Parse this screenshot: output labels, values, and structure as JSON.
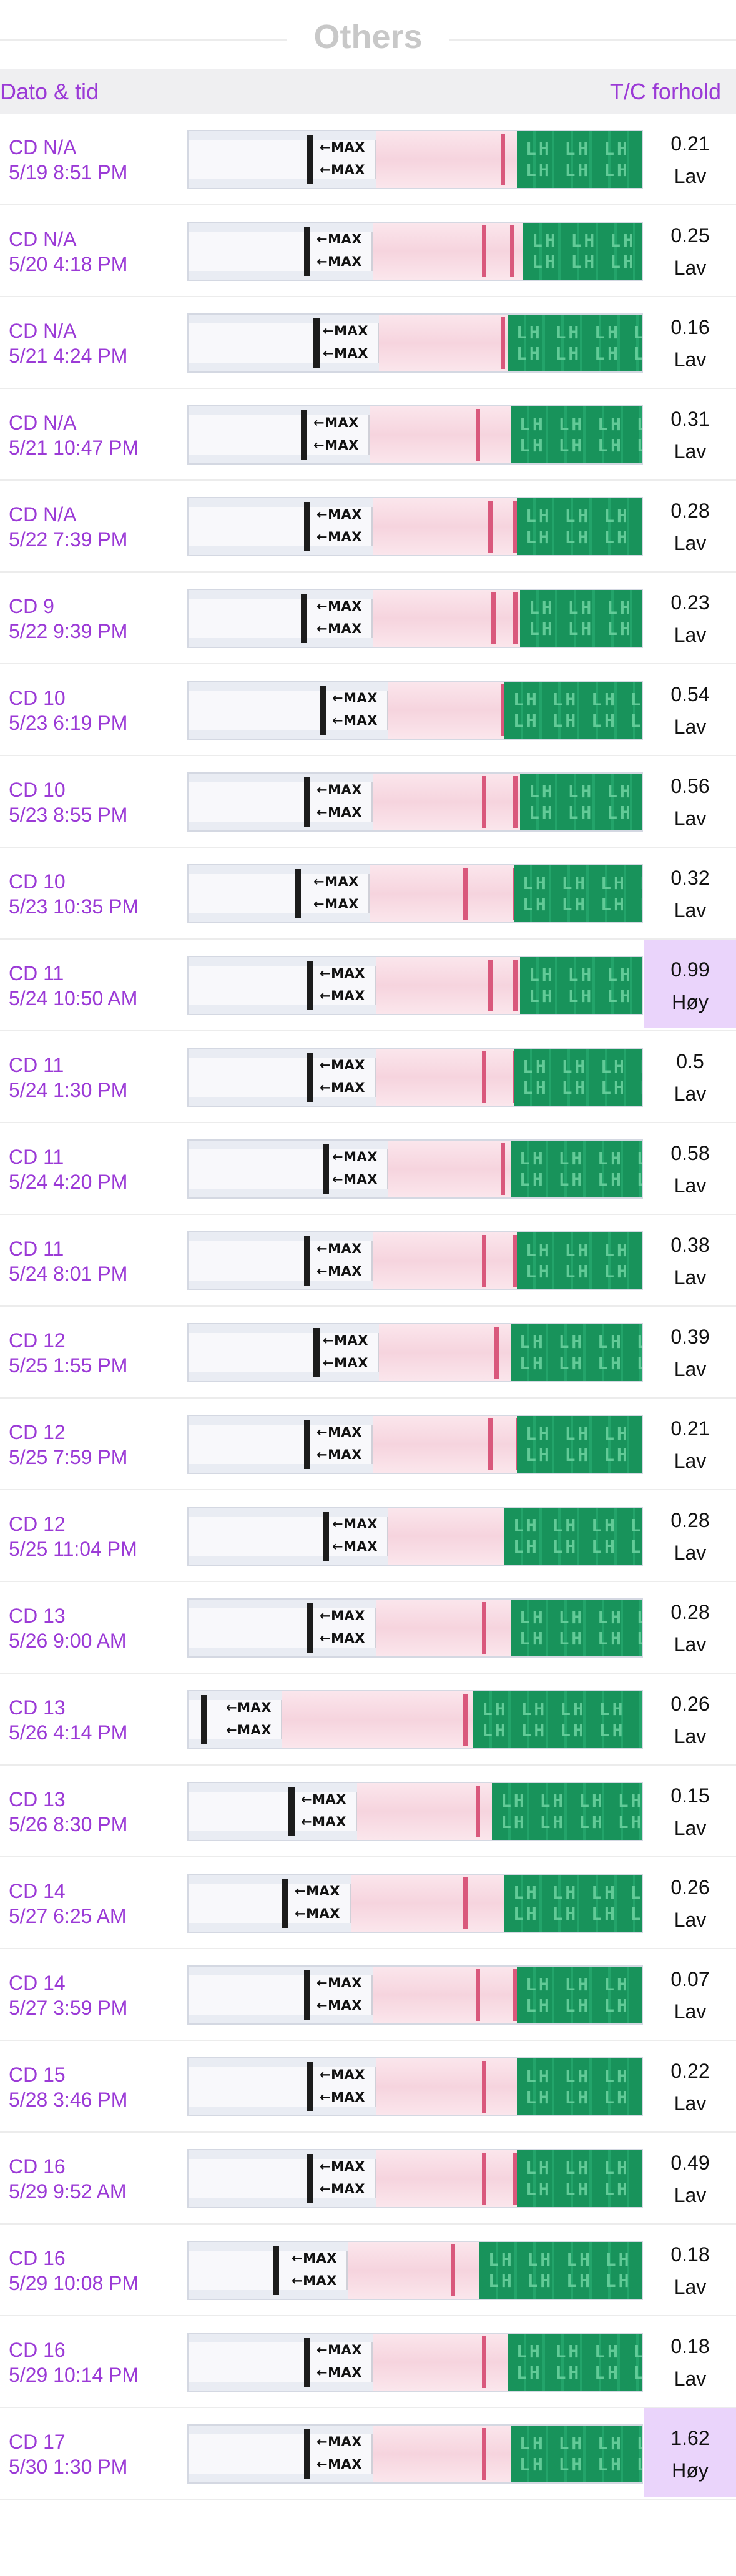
{
  "section": {
    "title": "Others"
  },
  "columns": {
    "date_time": "Dato & tid",
    "ratio": "T/C forhold"
  },
  "strip_text": {
    "max_label": "←MAX",
    "lh_pattern": "LH LH LH LH\nLH LH LH LH"
  },
  "colors": {
    "accent": "#9b3ad6",
    "high_bg": "#ead4fb",
    "strip_green": "#18935b",
    "test_line": "#d9587c"
  },
  "rows": [
    {
      "cd": "CD N/A",
      "datetime": "5/19 8:51 PM",
      "ratio": "0.21",
      "level": "Lav"
    },
    {
      "cd": "CD N/A",
      "datetime": "5/20 4:18 PM",
      "ratio": "0.25",
      "level": "Lav"
    },
    {
      "cd": "CD N/A",
      "datetime": "5/21 4:24 PM",
      "ratio": "0.16",
      "level": "Lav"
    },
    {
      "cd": "CD N/A",
      "datetime": "5/21 10:47 PM",
      "ratio": "0.31",
      "level": "Lav"
    },
    {
      "cd": "CD N/A",
      "datetime": "5/22 7:39 PM",
      "ratio": "0.28",
      "level": "Lav"
    },
    {
      "cd": "CD 9",
      "datetime": "5/22 9:39 PM",
      "ratio": "0.23",
      "level": "Lav"
    },
    {
      "cd": "CD 10",
      "datetime": "5/23 6:19 PM",
      "ratio": "0.54",
      "level": "Lav"
    },
    {
      "cd": "CD 10",
      "datetime": "5/23 8:55 PM",
      "ratio": "0.56",
      "level": "Lav"
    },
    {
      "cd": "CD 10",
      "datetime": "5/23 10:35 PM",
      "ratio": "0.32",
      "level": "Lav"
    },
    {
      "cd": "CD 11",
      "datetime": "5/24 10:50 AM",
      "ratio": "0.99",
      "level": "Høy"
    },
    {
      "cd": "CD 11",
      "datetime": "5/24 1:30 PM",
      "ratio": "0.5",
      "level": "Lav"
    },
    {
      "cd": "CD 11",
      "datetime": "5/24 4:20 PM",
      "ratio": "0.58",
      "level": "Lav"
    },
    {
      "cd": "CD 11",
      "datetime": "5/24 8:01 PM",
      "ratio": "0.38",
      "level": "Lav"
    },
    {
      "cd": "CD 12",
      "datetime": "5/25 1:55 PM",
      "ratio": "0.39",
      "level": "Lav"
    },
    {
      "cd": "CD 12",
      "datetime": "5/25 7:59 PM",
      "ratio": "0.21",
      "level": "Lav"
    },
    {
      "cd": "CD 12",
      "datetime": "5/25 11:04 PM",
      "ratio": "0.28",
      "level": "Lav"
    },
    {
      "cd": "CD 13",
      "datetime": "5/26 9:00 AM",
      "ratio": "0.28",
      "level": "Lav"
    },
    {
      "cd": "CD 13",
      "datetime": "5/26 4:14 PM",
      "ratio": "0.26",
      "level": "Lav"
    },
    {
      "cd": "CD 13",
      "datetime": "5/26 8:30 PM",
      "ratio": "0.15",
      "level": "Lav"
    },
    {
      "cd": "CD 14",
      "datetime": "5/27 6:25 AM",
      "ratio": "0.26",
      "level": "Lav"
    },
    {
      "cd": "CD 14",
      "datetime": "5/27 3:59 PM",
      "ratio": "0.07",
      "level": "Lav"
    },
    {
      "cd": "CD 15",
      "datetime": "5/28 3:46 PM",
      "ratio": "0.22",
      "level": "Lav"
    },
    {
      "cd": "CD 16",
      "datetime": "5/29 9:52 AM",
      "ratio": "0.49",
      "level": "Lav"
    },
    {
      "cd": "CD 16",
      "datetime": "5/29 10:08 PM",
      "ratio": "0.18",
      "level": "Lav"
    },
    {
      "cd": "CD 16",
      "datetime": "5/29 10:14 PM",
      "ratio": "0.18",
      "level": "Lav"
    },
    {
      "cd": "CD 17",
      "datetime": "5/30 1:30 PM",
      "ratio": "1.62",
      "level": "Høy"
    }
  ]
}
